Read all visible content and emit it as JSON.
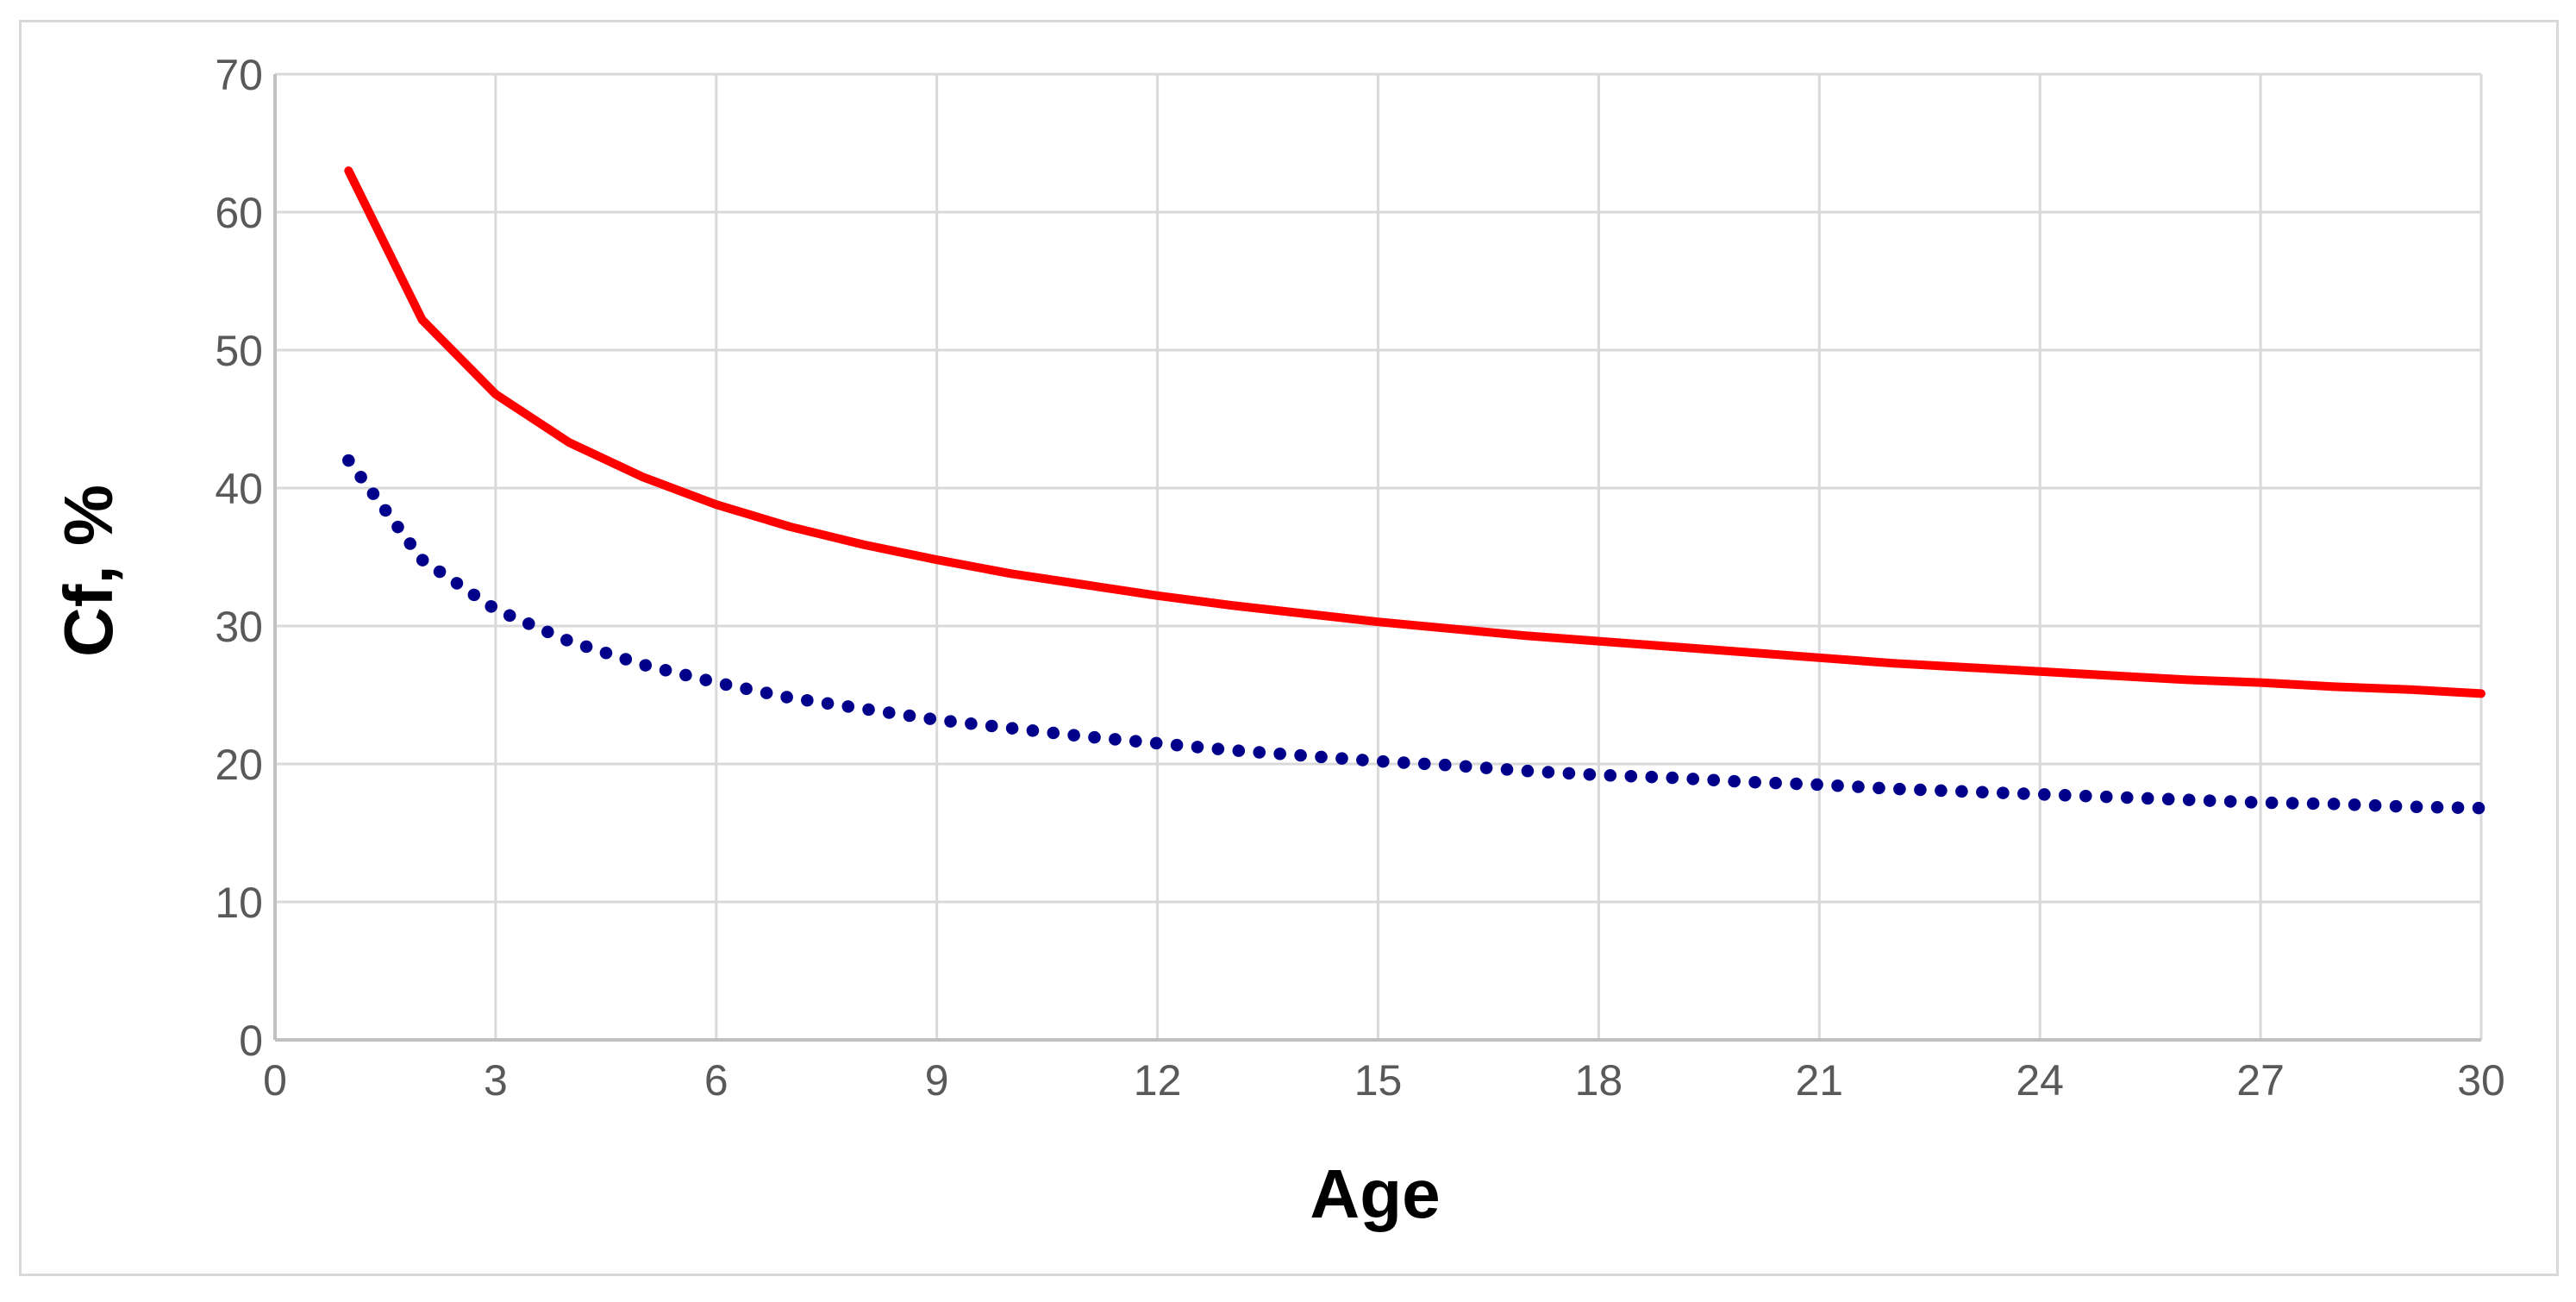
{
  "chart_data": {
    "type": "line",
    "title": "",
    "xlabel": "Age",
    "ylabel": "Cf, %",
    "xlim": [
      0,
      30
    ],
    "ylim": [
      0,
      70
    ],
    "x_ticks": [
      0,
      3,
      6,
      9,
      12,
      15,
      18,
      21,
      24,
      27,
      30
    ],
    "y_ticks": [
      0,
      10,
      20,
      30,
      40,
      50,
      60,
      70
    ],
    "grid": true,
    "legend_position": "none",
    "x": [
      1,
      2,
      3,
      4,
      5,
      6,
      7,
      8,
      9,
      10,
      11,
      12,
      13,
      14,
      15,
      16,
      17,
      18,
      19,
      20,
      21,
      22,
      23,
      24,
      25,
      26,
      27,
      28,
      29,
      30
    ],
    "series": [
      {
        "name": "series-1-solid",
        "color": "#FF0000",
        "style": "solid",
        "line_width": 10,
        "values": [
          63.0,
          52.2,
          46.8,
          43.3,
          40.8,
          38.8,
          37.2,
          35.9,
          34.8,
          33.8,
          33.0,
          32.2,
          31.5,
          30.9,
          30.3,
          29.8,
          29.3,
          28.9,
          28.5,
          28.1,
          27.7,
          27.3,
          27.0,
          26.7,
          26.4,
          26.1,
          25.9,
          25.6,
          25.4,
          25.1
        ]
      },
      {
        "name": "series-2-dotted",
        "color": "#00008B",
        "style": "dotted",
        "line_width": 14.5,
        "values": [
          42.0,
          34.8,
          31.2,
          28.9,
          27.2,
          25.9,
          24.8,
          24.0,
          23.2,
          22.6,
          22.0,
          21.5,
          21.0,
          20.6,
          20.2,
          19.9,
          19.5,
          19.2,
          19.0,
          18.7,
          18.5,
          18.2,
          18.0,
          17.8,
          17.6,
          17.4,
          17.2,
          17.1,
          16.9,
          16.8
        ]
      }
    ]
  },
  "style": {
    "background_color": "#FFFFFF",
    "figure_border_color": "#D9D9D9",
    "grid_color": "#D9D9D9",
    "axis_color": "#C0C0C0",
    "tick_label_color": "#595959",
    "title_color": "#000000"
  }
}
